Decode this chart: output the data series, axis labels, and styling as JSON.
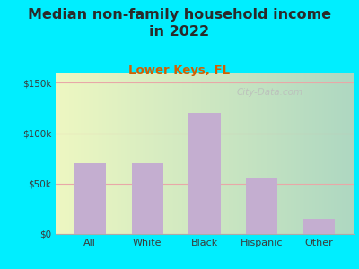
{
  "title": "Median non-family household income\nin 2022",
  "subtitle": "Lower Keys, FL",
  "categories": [
    "All",
    "White",
    "Black",
    "Hispanic",
    "Other"
  ],
  "values": [
    70000,
    70000,
    120000,
    55000,
    15000
  ],
  "bar_color": "#c4aed0",
  "title_fontsize": 11.5,
  "subtitle_fontsize": 9.5,
  "subtitle_color": "#d45f00",
  "title_color": "#2a2a2a",
  "tick_color": "#3a3a3a",
  "ylim": [
    0,
    160000
  ],
  "yticks": [
    0,
    50000,
    100000,
    150000
  ],
  "ytick_labels": [
    "$0",
    "$50k",
    "$100k",
    "$150k"
  ],
  "bg_outer": "#00eeff",
  "bg_plot": "#e8f5e0",
  "watermark": "City-Data.com",
  "grid_color": "#e8a8a8",
  "bar_width": 0.55
}
